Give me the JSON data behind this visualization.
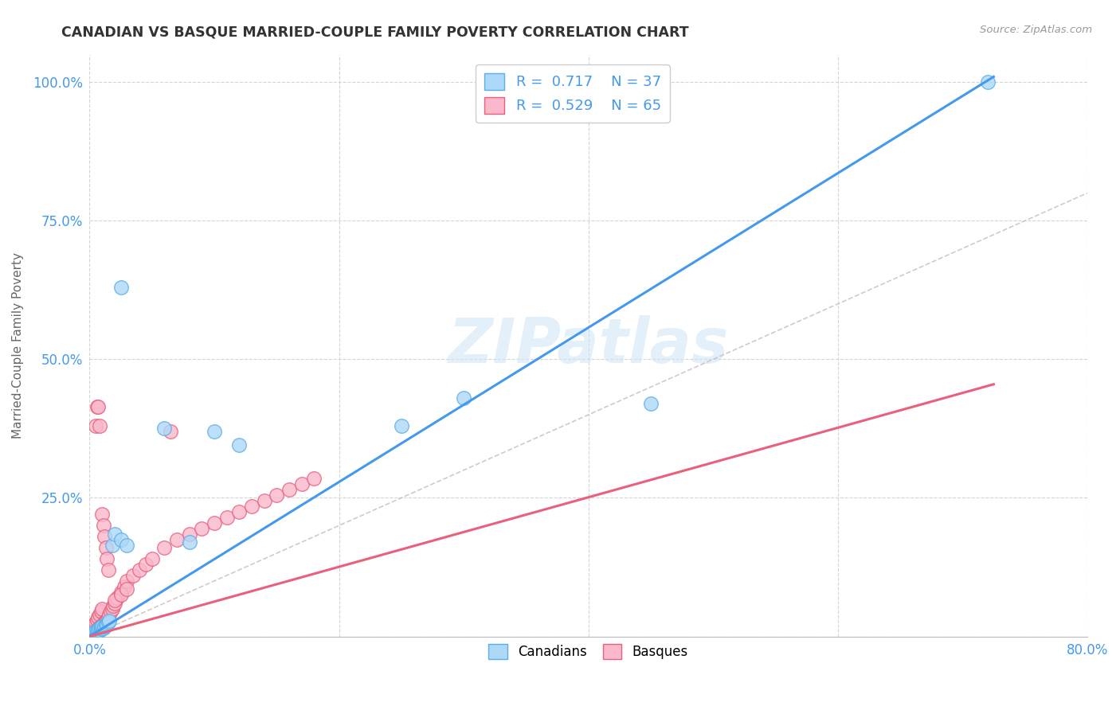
{
  "title": "CANADIAN VS BASQUE MARRIED-COUPLE FAMILY POVERTY CORRELATION CHART",
  "source": "Source: ZipAtlas.com",
  "ylabel": "Married-Couple Family Poverty",
  "xlim": [
    0.0,
    0.8
  ],
  "ylim": [
    0.0,
    1.05
  ],
  "xticks": [
    0.0,
    0.2,
    0.4,
    0.6,
    0.8
  ],
  "xticklabels": [
    "0.0%",
    "",
    "",
    "",
    "80.0%"
  ],
  "yticks": [
    0.0,
    0.25,
    0.5,
    0.75,
    1.0
  ],
  "yticklabels": [
    "",
    "25.0%",
    "50.0%",
    "75.0%",
    "100.0%"
  ],
  "grid_color": "#d0d0d0",
  "background_color": "#ffffff",
  "watermark_text": "ZIPatlas",
  "legend_r_canadian": "0.717",
  "legend_n_canadian": "37",
  "legend_r_basque": "0.529",
  "legend_n_basque": "65",
  "canadian_face_color": "#add8f7",
  "canadian_edge_color": "#5baee8",
  "basque_face_color": "#f9b8cc",
  "basque_edge_color": "#e8607a",
  "canadian_line_color": "#4499ee",
  "basque_line_color": "#e8607a",
  "diagonal_color": "#ccbbbb",
  "canadian_line_x": [
    0.0,
    0.725
  ],
  "canadian_line_y": [
    0.0,
    1.01
  ],
  "basque_line_x": [
    0.0,
    0.725
  ],
  "basque_line_y": [
    0.0,
    0.455
  ],
  "diagonal_line_x": [
    0.0,
    0.8
  ],
  "diagonal_line_y": [
    0.0,
    0.8
  ],
  "canadian_scatter_x": [
    0.001,
    0.002,
    0.003,
    0.003,
    0.004,
    0.004,
    0.005,
    0.005,
    0.006,
    0.006,
    0.007,
    0.007,
    0.008,
    0.008,
    0.009,
    0.009,
    0.01,
    0.01,
    0.011,
    0.012,
    0.013,
    0.014,
    0.015,
    0.016,
    0.018,
    0.02,
    0.025,
    0.03,
    0.06,
    0.08,
    0.1,
    0.12,
    0.25,
    0.3,
    0.45,
    0.72,
    0.025
  ],
  "canadian_scatter_y": [
    0.002,
    0.003,
    0.004,
    0.006,
    0.005,
    0.008,
    0.006,
    0.01,
    0.007,
    0.009,
    0.01,
    0.012,
    0.011,
    0.015,
    0.013,
    0.016,
    0.014,
    0.018,
    0.015,
    0.018,
    0.02,
    0.022,
    0.025,
    0.028,
    0.165,
    0.185,
    0.175,
    0.165,
    0.375,
    0.17,
    0.37,
    0.345,
    0.38,
    0.43,
    0.42,
    1.0,
    0.63
  ],
  "basque_scatter_x": [
    0.001,
    0.001,
    0.002,
    0.002,
    0.003,
    0.003,
    0.004,
    0.004,
    0.005,
    0.005,
    0.005,
    0.006,
    0.006,
    0.006,
    0.007,
    0.007,
    0.007,
    0.008,
    0.008,
    0.008,
    0.009,
    0.009,
    0.01,
    0.01,
    0.01,
    0.011,
    0.011,
    0.012,
    0.012,
    0.013,
    0.013,
    0.014,
    0.014,
    0.015,
    0.015,
    0.016,
    0.017,
    0.018,
    0.019,
    0.02,
    0.022,
    0.025,
    0.028,
    0.03,
    0.035,
    0.04,
    0.045,
    0.05,
    0.06,
    0.065,
    0.07,
    0.08,
    0.09,
    0.1,
    0.11,
    0.12,
    0.13,
    0.14,
    0.15,
    0.16,
    0.17,
    0.18,
    0.02,
    0.025,
    0.03
  ],
  "basque_scatter_y": [
    0.003,
    0.01,
    0.005,
    0.015,
    0.006,
    0.02,
    0.008,
    0.022,
    0.01,
    0.025,
    0.38,
    0.012,
    0.03,
    0.415,
    0.014,
    0.035,
    0.415,
    0.016,
    0.04,
    0.38,
    0.018,
    0.045,
    0.02,
    0.05,
    0.22,
    0.022,
    0.2,
    0.025,
    0.18,
    0.028,
    0.16,
    0.03,
    0.14,
    0.035,
    0.12,
    0.04,
    0.045,
    0.05,
    0.055,
    0.06,
    0.07,
    0.08,
    0.09,
    0.1,
    0.11,
    0.12,
    0.13,
    0.14,
    0.16,
    0.37,
    0.175,
    0.185,
    0.195,
    0.205,
    0.215,
    0.225,
    0.235,
    0.245,
    0.255,
    0.265,
    0.275,
    0.285,
    0.065,
    0.075,
    0.085
  ]
}
